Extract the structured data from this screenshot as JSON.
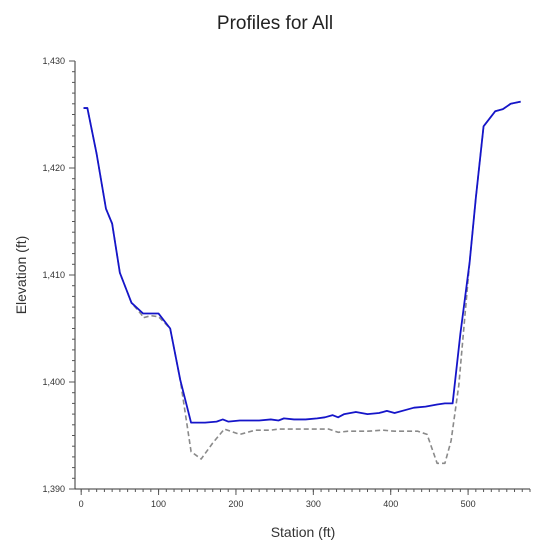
{
  "chart_data": {
    "type": "line",
    "title": "Profiles for All",
    "xlabel": "Station (ft)",
    "ylabel": "Elevation (ft)",
    "xlim": [
      -8,
      580
    ],
    "ylim": [
      1390,
      1430
    ],
    "xticks": [
      0,
      100,
      200,
      300,
      400,
      500
    ],
    "xtick_labels": [
      "0",
      "100",
      "200",
      "300",
      "400",
      "500"
    ],
    "yticks": [
      1390,
      1400,
      1410,
      1420,
      1430
    ],
    "ytick_labels": [
      "1,390",
      "1,400",
      "1,410",
      "1,420",
      "1,430"
    ],
    "grid": false,
    "legend": "none",
    "series": [
      {
        "color": "#8a8a8a",
        "dash": "dashed",
        "points": [
          [
            3,
            1425.6
          ],
          [
            8,
            1425.6
          ],
          [
            20,
            1421.3
          ],
          [
            32,
            1416.2
          ],
          [
            40,
            1414.8
          ],
          [
            50,
            1410.2
          ],
          [
            65,
            1407.4
          ],
          [
            78,
            1406.3
          ],
          [
            80,
            1406.0
          ],
          [
            90,
            1406.2
          ],
          [
            100,
            1406.1
          ],
          [
            115,
            1405.0
          ],
          [
            128,
            1400.2
          ],
          [
            142,
            1393.5
          ],
          [
            155,
            1392.8
          ],
          [
            170,
            1394.3
          ],
          [
            185,
            1395.6
          ],
          [
            205,
            1395.1
          ],
          [
            225,
            1395.5
          ],
          [
            245,
            1395.5
          ],
          [
            255,
            1395.6
          ],
          [
            265,
            1395.6
          ],
          [
            285,
            1395.6
          ],
          [
            305,
            1395.6
          ],
          [
            320,
            1395.6
          ],
          [
            332,
            1395.3
          ],
          [
            345,
            1395.4
          ],
          [
            370,
            1395.4
          ],
          [
            390,
            1395.5
          ],
          [
            405,
            1395.4
          ],
          [
            425,
            1395.4
          ],
          [
            435,
            1395.4
          ],
          [
            447,
            1395.1
          ],
          [
            460,
            1392.4
          ],
          [
            470,
            1392.4
          ],
          [
            478,
            1394.5
          ],
          [
            488,
            1399.7
          ],
          [
            502,
            1411.2
          ],
          [
            510,
            1417.2
          ],
          [
            520,
            1423.9
          ],
          [
            535,
            1425.3
          ],
          [
            545,
            1425.5
          ],
          [
            555,
            1426.0
          ],
          [
            568,
            1426.2
          ]
        ]
      },
      {
        "color": "#1515c9",
        "dash": "solid",
        "points": [
          [
            3,
            1425.6
          ],
          [
            8,
            1425.6
          ],
          [
            20,
            1421.3
          ],
          [
            32,
            1416.2
          ],
          [
            40,
            1414.8
          ],
          [
            50,
            1410.2
          ],
          [
            65,
            1407.4
          ],
          [
            80,
            1406.4
          ],
          [
            90,
            1406.4
          ],
          [
            100,
            1406.4
          ],
          [
            115,
            1405.0
          ],
          [
            128,
            1400.2
          ],
          [
            142,
            1396.2
          ],
          [
            160,
            1396.2
          ],
          [
            175,
            1396.3
          ],
          [
            183,
            1396.5
          ],
          [
            190,
            1396.3
          ],
          [
            205,
            1396.4
          ],
          [
            230,
            1396.4
          ],
          [
            245,
            1396.5
          ],
          [
            255,
            1396.4
          ],
          [
            262,
            1396.6
          ],
          [
            275,
            1396.5
          ],
          [
            290,
            1396.5
          ],
          [
            305,
            1396.6
          ],
          [
            315,
            1396.7
          ],
          [
            325,
            1396.9
          ],
          [
            332,
            1396.7
          ],
          [
            340,
            1397.0
          ],
          [
            355,
            1397.2
          ],
          [
            370,
            1397.0
          ],
          [
            385,
            1397.1
          ],
          [
            395,
            1397.3
          ],
          [
            405,
            1397.1
          ],
          [
            420,
            1397.4
          ],
          [
            430,
            1397.6
          ],
          [
            445,
            1397.7
          ],
          [
            460,
            1397.9
          ],
          [
            470,
            1398.0
          ],
          [
            480,
            1398.0
          ],
          [
            490,
            1404.5
          ],
          [
            502,
            1411.2
          ],
          [
            510,
            1417.2
          ],
          [
            520,
            1423.9
          ],
          [
            535,
            1425.3
          ],
          [
            545,
            1425.5
          ],
          [
            555,
            1426.0
          ],
          [
            568,
            1426.2
          ]
        ]
      }
    ]
  }
}
